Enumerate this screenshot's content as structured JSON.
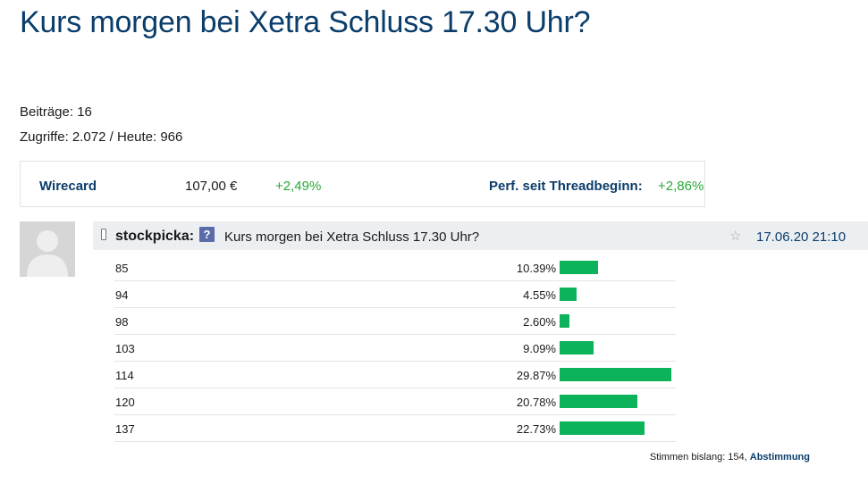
{
  "page": {
    "title": "Kurs morgen bei Xetra Schluss 17.30 Uhr?"
  },
  "stats": {
    "posts": "Beiträge: 16",
    "views": "Zugriffe: 2.072 / Heute: 966"
  },
  "quote": {
    "name": "Wirecard",
    "price": "107,00 €",
    "change": "+2,49%",
    "perf_label": "Perf. seit Threadbeginn:",
    "perf_value": "+2,86%",
    "positive_color": "#2aa836"
  },
  "post": {
    "author": "stockpicka:",
    "title": "Kurs morgen bei Xetra Schluss 17.30 Uhr?",
    "date": "17.06.20 21:10"
  },
  "poll": {
    "bar_color": "#0db35a",
    "options": [
      {
        "label": "85",
        "percent": "10.39%",
        "value": 10.39
      },
      {
        "label": "94",
        "percent": "4.55%",
        "value": 4.55
      },
      {
        "label": "98",
        "percent": "2.60%",
        "value": 2.6
      },
      {
        "label": "103",
        "percent": "9.09%",
        "value": 9.09
      },
      {
        "label": "114",
        "percent": "29.87%",
        "value": 29.87
      },
      {
        "label": "120",
        "percent": "20.78%",
        "value": 20.78
      },
      {
        "label": "137",
        "percent": "22.73%",
        "value": 22.73
      }
    ],
    "footer_text": "Stimmen bislang: 154, ",
    "footer_link": "Abstimmung"
  },
  "icons": {
    "device": "mobile-phone-icon",
    "help": "question-mark-icon",
    "favorite": "star-icon",
    "avatar": "user-placeholder-icon"
  }
}
